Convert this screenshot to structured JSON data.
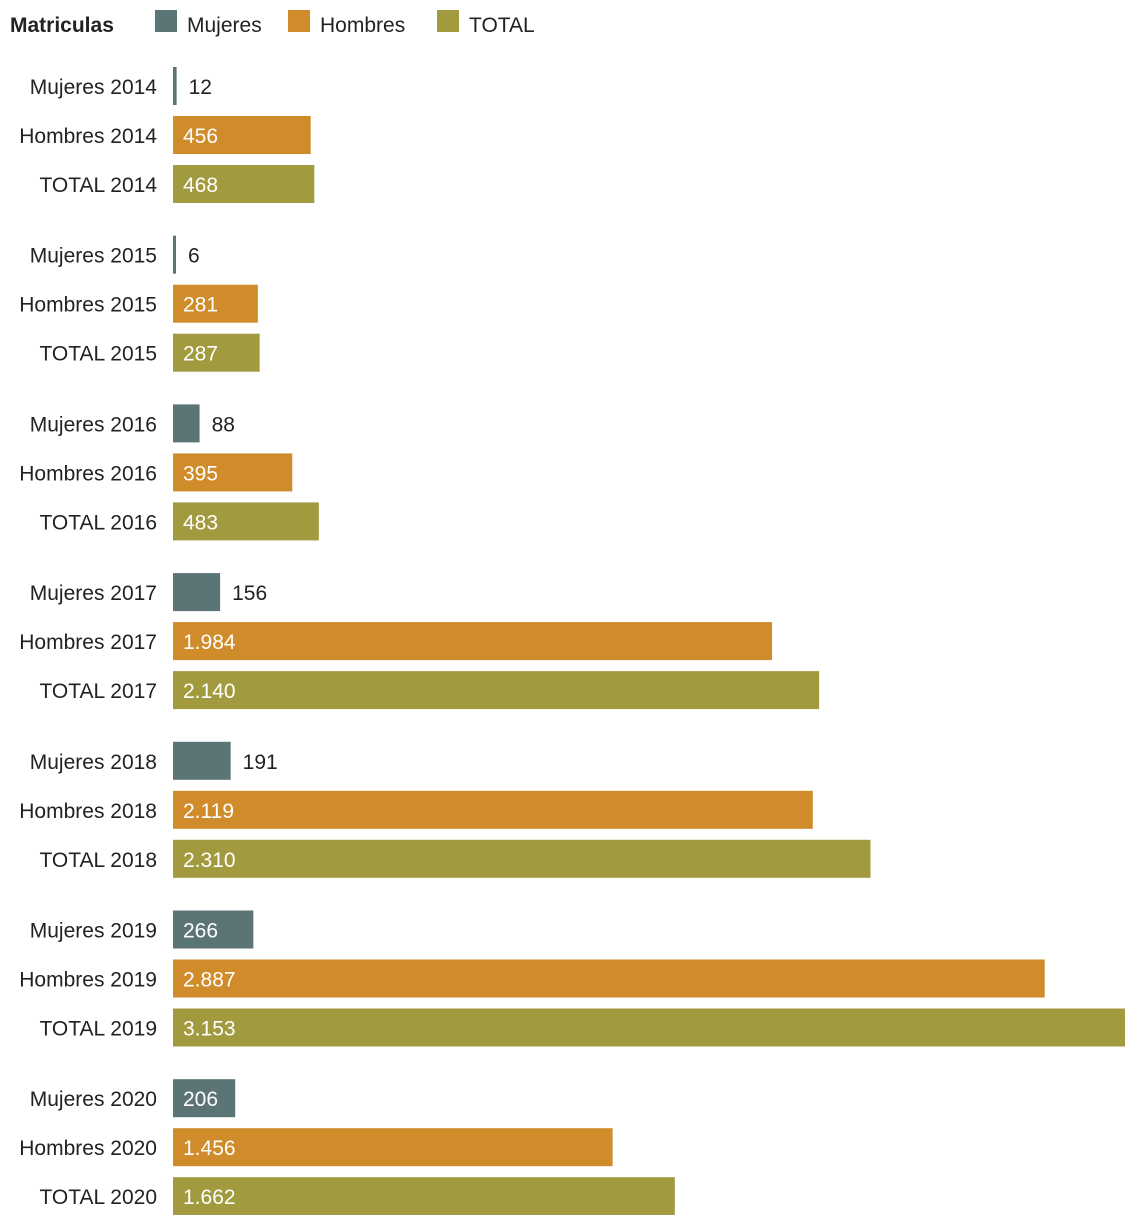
{
  "chart_data": {
    "type": "bar",
    "orientation": "horizontal",
    "title": "Matriculas",
    "legend": [
      {
        "name": "Mujeres",
        "color": "#5b7576"
      },
      {
        "name": "Hombres",
        "color": "#d08c2a"
      },
      {
        "name": "TOTAL",
        "color": "#a29a3f"
      }
    ],
    "legend_position": "top-left",
    "xlim": [
      0,
      3153
    ],
    "grid": false,
    "bars": [
      {
        "label": "Mujeres 2014",
        "series": "Mujeres",
        "value": 12,
        "display": "12"
      },
      {
        "label": "Hombres 2014",
        "series": "Hombres",
        "value": 456,
        "display": "456"
      },
      {
        "label": "TOTAL 2014",
        "series": "TOTAL",
        "value": 468,
        "display": "468"
      },
      {
        "label": "Mujeres 2015",
        "series": "Mujeres",
        "value": 6,
        "display": "6"
      },
      {
        "label": "Hombres 2015",
        "series": "Hombres",
        "value": 281,
        "display": "281"
      },
      {
        "label": "TOTAL 2015",
        "series": "TOTAL",
        "value": 287,
        "display": "287"
      },
      {
        "label": "Mujeres 2016",
        "series": "Mujeres",
        "value": 88,
        "display": "88"
      },
      {
        "label": "Hombres 2016",
        "series": "Hombres",
        "value": 395,
        "display": "395"
      },
      {
        "label": "TOTAL 2016",
        "series": "TOTAL",
        "value": 483,
        "display": "483"
      },
      {
        "label": "Mujeres 2017",
        "series": "Mujeres",
        "value": 156,
        "display": "156"
      },
      {
        "label": "Hombres 2017",
        "series": "Hombres",
        "value": 1984,
        "display": "1.984"
      },
      {
        "label": "TOTAL 2017",
        "series": "TOTAL",
        "value": 2140,
        "display": "2.140"
      },
      {
        "label": "Mujeres 2018",
        "series": "Mujeres",
        "value": 191,
        "display": "191"
      },
      {
        "label": "Hombres 2018",
        "series": "Hombres",
        "value": 2119,
        "display": "2.119"
      },
      {
        "label": "TOTAL 2018",
        "series": "TOTAL",
        "value": 2310,
        "display": "2.310"
      },
      {
        "label": "Mujeres 2019",
        "series": "Mujeres",
        "value": 266,
        "display": "266"
      },
      {
        "label": "Hombres 2019",
        "series": "Hombres",
        "value": 2887,
        "display": "2.887"
      },
      {
        "label": "TOTAL 2019",
        "series": "TOTAL",
        "value": 3153,
        "display": "3.153"
      },
      {
        "label": "Mujeres 2020",
        "series": "Mujeres",
        "value": 206,
        "display": "206"
      },
      {
        "label": "Hombres 2020",
        "series": "Hombres",
        "value": 1456,
        "display": "1.456"
      },
      {
        "label": "TOTAL 2020",
        "series": "TOTAL",
        "value": 1662,
        "display": "1.662"
      }
    ]
  }
}
